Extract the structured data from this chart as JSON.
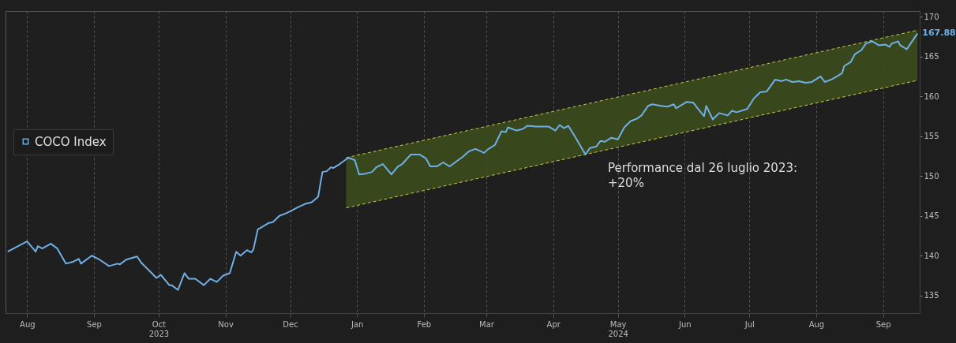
{
  "chart_data": {
    "type": "line",
    "annotations": [
      "Performance dal 26 luglio 2023:\n+20%"
    ],
    "xlim": [
      "2023-07-22",
      "2024-09-18"
    ],
    "xticks": [
      {
        "value": "2023-08-01",
        "label": "Aug"
      },
      {
        "value": "2023-09-01",
        "label": "Sep"
      },
      {
        "value": "2023-10-01",
        "label": "Oct\n2023"
      },
      {
        "value": "2023-11-01",
        "label": "Nov"
      },
      {
        "value": "2023-12-01",
        "label": "Dec"
      },
      {
        "value": "2024-01-01",
        "label": "Jan"
      },
      {
        "value": "2024-02-01",
        "label": "Feb"
      },
      {
        "value": "2024-03-01",
        "label": "Mar"
      },
      {
        "value": "2024-04-01",
        "label": "Apr"
      },
      {
        "value": "2024-05-01",
        "label": "May\n2024"
      },
      {
        "value": "2024-06-01",
        "label": "Jun"
      },
      {
        "value": "2024-07-01",
        "label": "Jul"
      },
      {
        "value": "2024-08-01",
        "label": "Aug"
      },
      {
        "value": "2024-09-01",
        "label": "Sep"
      }
    ],
    "ylim": [
      132.8,
      170.7
    ],
    "yticks": [
      135,
      140,
      145,
      150,
      155,
      160,
      165,
      170
    ],
    "grid": "x",
    "legend": "left",
    "series": [
      {
        "type": "line",
        "color": "#c9c94a",
        "line_style": "dashed",
        "x": [
          "2023-12-27",
          "2024-09-17"
        ],
        "values": [
          152.3,
          168.3
        ]
      },
      {
        "type": "line",
        "color": "#c9c94a",
        "line_style": "dashed",
        "x": [
          "2023-12-27",
          "2024-09-17"
        ],
        "values": [
          146.0,
          162.0
        ]
      },
      {
        "name": "COCO Index",
        "color": "#6fb0e6",
        "x": [
          "2023-07-23",
          "2023-08-01",
          "2023-08-05",
          "2023-08-06",
          "2023-08-08",
          "2023-08-12",
          "2023-08-15",
          "2023-08-19",
          "2023-08-22",
          "2023-08-25",
          "2023-08-26",
          "2023-08-31",
          "2023-09-03",
          "2023-09-08",
          "2023-09-12",
          "2023-09-13",
          "2023-09-16",
          "2023-09-21",
          "2023-09-23",
          "2023-09-26",
          "2023-09-30",
          "2023-10-02",
          "2023-10-06",
          "2023-10-07",
          "2023-10-10",
          "2023-10-13",
          "2023-10-15",
          "2023-10-18",
          "2023-10-22",
          "2023-10-25",
          "2023-10-28",
          "2023-10-31",
          "2023-11-03",
          "2023-11-06",
          "2023-11-08",
          "2023-11-11",
          "2023-11-13",
          "2023-11-14",
          "2023-11-16",
          "2023-11-18",
          "2023-11-21",
          "2023-11-23",
          "2023-11-26",
          "2023-11-29",
          "2023-12-02",
          "2023-12-04",
          "2023-12-08",
          "2023-12-11",
          "2023-12-14",
          "2023-12-16",
          "2023-12-18",
          "2023-12-20",
          "2023-12-21",
          "2023-12-24",
          "2023-12-28",
          "2023-12-31",
          "2024-01-02",
          "2024-01-05",
          "2024-01-08",
          "2024-01-10",
          "2024-01-13",
          "2024-01-17",
          "2024-01-20",
          "2024-01-22",
          "2024-01-23",
          "2024-01-26",
          "2024-01-30",
          "2024-02-02",
          "2024-02-04",
          "2024-02-07",
          "2024-02-10",
          "2024-02-13",
          "2024-02-16",
          "2024-02-19",
          "2024-02-22",
          "2024-02-25",
          "2024-02-29",
          "2024-03-02",
          "2024-03-05",
          "2024-03-08",
          "2024-03-10",
          "2024-03-11",
          "2024-03-15",
          "2024-03-18",
          "2024-03-20",
          "2024-03-24",
          "2024-03-30",
          "2024-04-02",
          "2024-04-04",
          "2024-04-06",
          "2024-04-08",
          "2024-04-11",
          "2024-04-16",
          "2024-04-18",
          "2024-04-21",
          "2024-04-23",
          "2024-04-25",
          "2024-04-28",
          "2024-05-01",
          "2024-05-04",
          "2024-05-07",
          "2024-05-10",
          "2024-05-12",
          "2024-05-15",
          "2024-05-17",
          "2024-05-21",
          "2024-05-24",
          "2024-05-27",
          "2024-05-28",
          "2024-06-02",
          "2024-06-05",
          "2024-06-07",
          "2024-06-10",
          "2024-06-11",
          "2024-06-14",
          "2024-06-17",
          "2024-06-21",
          "2024-06-23",
          "2024-06-25",
          "2024-06-30",
          "2024-07-03",
          "2024-07-06",
          "2024-07-09",
          "2024-07-13",
          "2024-07-16",
          "2024-07-18",
          "2024-07-21",
          "2024-07-24",
          "2024-07-27",
          "2024-07-30",
          "2024-08-03",
          "2024-08-05",
          "2024-08-08",
          "2024-08-10",
          "2024-08-13",
          "2024-08-14",
          "2024-08-17",
          "2024-08-19",
          "2024-08-22",
          "2024-08-24",
          "2024-08-27",
          "2024-08-30",
          "2024-09-02",
          "2024-09-04",
          "2024-09-05",
          "2024-09-08",
          "2024-09-09",
          "2024-09-12",
          "2024-09-14",
          "2024-09-16",
          "2024-09-17"
        ],
        "values": [
          140.5,
          141.8,
          140.5,
          141.2,
          140.9,
          141.5,
          140.9,
          139.0,
          139.2,
          139.6,
          139.0,
          140.0,
          139.6,
          138.7,
          139.0,
          138.9,
          139.5,
          139.9,
          139.1,
          138.3,
          137.2,
          137.6,
          136.3,
          136.3,
          135.7,
          137.8,
          137.1,
          137.1,
          136.3,
          137.1,
          136.7,
          137.5,
          137.8,
          140.5,
          140.0,
          140.7,
          140.4,
          140.8,
          143.3,
          143.6,
          144.1,
          144.2,
          145.0,
          145.3,
          145.7,
          146.0,
          146.5,
          146.7,
          147.4,
          150.5,
          150.6,
          151.1,
          151.0,
          151.5,
          152.3,
          152.0,
          150.2,
          150.3,
          150.5,
          151.1,
          151.5,
          150.2,
          151.2,
          151.5,
          151.8,
          152.7,
          152.7,
          152.2,
          151.2,
          151.2,
          151.7,
          151.2,
          151.8,
          152.4,
          153.1,
          153.4,
          152.9,
          153.4,
          153.9,
          155.6,
          155.5,
          156.1,
          155.7,
          155.9,
          156.3,
          156.2,
          156.2,
          155.7,
          156.4,
          156.0,
          156.3,
          155.0,
          152.7,
          153.5,
          153.7,
          154.4,
          154.3,
          154.8,
          154.6,
          156.1,
          156.9,
          157.2,
          157.6,
          158.8,
          159.0,
          158.8,
          158.7,
          159.0,
          158.5,
          159.3,
          159.2,
          158.5,
          157.5,
          158.8,
          157.1,
          157.9,
          157.6,
          158.2,
          158.0,
          158.4,
          159.7,
          160.5,
          160.6,
          162.1,
          161.9,
          162.1,
          161.8,
          161.9,
          161.7,
          161.8,
          162.5,
          161.8,
          162.1,
          162.4,
          162.9,
          163.8,
          164.3,
          165.3,
          165.8,
          166.6,
          166.9,
          166.4,
          166.5,
          166.2,
          166.6,
          166.9,
          166.4,
          165.9,
          166.7,
          167.5,
          167.88
        ],
        "value_labels": [
          null,
          null,
          null,
          null,
          null,
          null,
          null,
          null,
          null,
          null,
          null,
          null,
          null,
          null,
          null,
          null,
          null,
          null,
          null,
          null,
          null,
          null,
          null,
          null,
          null,
          null,
          null,
          null,
          null,
          null,
          null,
          null,
          null,
          null,
          null,
          null,
          null,
          null,
          null,
          null,
          null,
          null,
          null,
          null,
          null,
          null,
          null,
          null,
          null,
          null,
          null,
          null,
          null,
          null,
          null,
          null,
          null,
          null,
          null,
          null,
          null,
          null,
          null,
          null,
          null,
          null,
          null,
          null,
          null,
          null,
          null,
          null,
          null,
          null,
          null,
          null,
          null,
          null,
          null,
          null,
          null,
          null,
          null,
          null,
          null,
          null,
          null,
          null,
          null,
          null,
          null,
          null,
          null,
          null,
          null,
          null,
          null,
          null,
          null,
          null,
          null,
          null,
          null,
          null,
          null,
          null,
          null,
          null,
          null,
          null,
          null,
          null,
          null,
          null,
          null,
          null,
          null,
          null,
          null,
          null,
          null,
          null,
          null,
          null,
          null,
          null,
          null,
          null,
          null,
          null,
          null,
          null,
          null,
          null,
          null,
          null,
          null,
          null,
          null,
          null,
          null,
          null,
          null,
          null,
          null,
          null,
          null,
          null,
          null,
          null,
          "167.88"
        ]
      }
    ]
  }
}
